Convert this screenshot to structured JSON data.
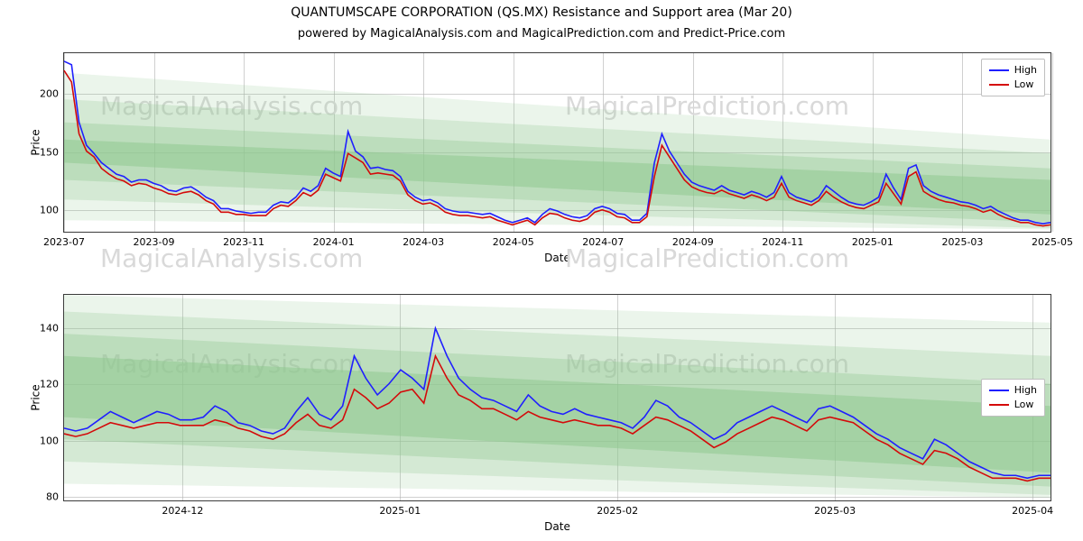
{
  "titles": {
    "main": "QUANTUMSCAPE CORPORATION (QS.MX) Resistance and Support area (Mar 20)",
    "sub": "powered by MagicalAnalysis.com and MagicalPrediction.com and Predict-Price.com"
  },
  "legend": {
    "high": "High",
    "low": "Low"
  },
  "colors": {
    "high": "#1f1fff",
    "low": "#d40a0a",
    "band1": "#8fc990",
    "band2": "#a9d6aa",
    "band3": "#c3e3c3",
    "band4": "#e3f1e3",
    "grid": "#b0b0b0",
    "watermark": "#d9d9d9",
    "axis": "#3b3b3b",
    "text": "#000000"
  },
  "watermarks": {
    "wm1": "MagicalAnalysis.com",
    "wm2": "MagicalPrediction.com"
  },
  "top_chart": {
    "type": "line",
    "xlabel": "Date",
    "ylabel": "Price",
    "ylim": [
      80,
      235
    ],
    "yticks": [
      100,
      150,
      200
    ],
    "xticks": [
      "2023-07",
      "2023-09",
      "2023-11",
      "2024-01",
      "2024-03",
      "2024-05",
      "2024-07",
      "2024-09",
      "2024-11",
      "2025-01",
      "2025-03",
      "2025-05"
    ],
    "xrange": [
      0,
      11
    ],
    "bands": [
      {
        "y0_start": 140,
        "y1_start": 160,
        "y0_end": 95,
        "y1_end": 125,
        "opacity": 0.55
      },
      {
        "y0_start": 125,
        "y1_start": 175,
        "y0_end": 88,
        "y1_end": 135,
        "opacity": 0.35
      },
      {
        "y0_start": 108,
        "y1_start": 195,
        "y0_end": 83,
        "y1_end": 148,
        "opacity": 0.25
      },
      {
        "y0_start": 90,
        "y1_start": 218,
        "y0_end": 82,
        "y1_end": 160,
        "opacity": 0.18
      }
    ],
    "high": [
      228,
      225,
      175,
      155,
      148,
      140,
      135,
      130,
      128,
      123,
      125,
      125,
      122,
      120,
      116,
      115,
      118,
      119,
      115,
      110,
      107,
      100,
      100,
      98,
      97,
      96,
      97,
      97,
      103,
      106,
      105,
      110,
      118,
      115,
      120,
      135,
      131,
      128,
      167,
      150,
      145,
      135,
      136,
      134,
      133,
      128,
      115,
      110,
      107,
      108,
      105,
      100,
      98,
      97,
      97,
      96,
      95,
      96,
      93,
      90,
      88,
      90,
      92,
      88,
      95,
      100,
      98,
      95,
      93,
      92,
      94,
      100,
      102,
      100,
      96,
      95,
      90,
      90,
      96,
      140,
      165,
      150,
      140,
      130,
      123,
      120,
      118,
      116,
      120,
      116,
      114,
      112,
      115,
      113,
      110,
      114,
      128,
      114,
      110,
      108,
      106,
      110,
      120,
      115,
      110,
      106,
      104,
      103,
      106,
      110,
      130,
      118,
      108,
      135,
      138,
      120,
      115,
      112,
      110,
      108,
      106,
      105,
      103,
      100,
      102,
      98,
      95,
      92,
      90,
      90,
      88,
      87,
      88
    ],
    "low": [
      220,
      210,
      165,
      150,
      145,
      135,
      130,
      126,
      124,
      120,
      122,
      121,
      118,
      116,
      113,
      112,
      114,
      115,
      112,
      107,
      104,
      97,
      97,
      95,
      95,
      94,
      94,
      94,
      100,
      103,
      102,
      107,
      114,
      111,
      116,
      130,
      127,
      124,
      148,
      144,
      140,
      130,
      131,
      130,
      129,
      124,
      112,
      107,
      104,
      105,
      102,
      97,
      95,
      94,
      94,
      93,
      92,
      93,
      90,
      88,
      86,
      88,
      90,
      86,
      92,
      96,
      95,
      92,
      90,
      89,
      91,
      97,
      99,
      97,
      93,
      92,
      88,
      88,
      93,
      128,
      155,
      145,
      135,
      125,
      119,
      116,
      114,
      113,
      116,
      113,
      111,
      109,
      112,
      110,
      107,
      110,
      122,
      110,
      107,
      105,
      103,
      107,
      115,
      110,
      106,
      103,
      101,
      100,
      103,
      106,
      122,
      113,
      104,
      128,
      132,
      115,
      111,
      108,
      106,
      105,
      103,
      102,
      100,
      97,
      99,
      95,
      92,
      90,
      88,
      88,
      86,
      85,
      86
    ]
  },
  "bottom_chart": {
    "type": "line",
    "xlabel": "Date",
    "ylabel": "Price",
    "ylim": [
      78,
      152
    ],
    "yticks": [
      80,
      100,
      120,
      140
    ],
    "xticks": [
      "2024-12",
      "2025-01",
      "2025-02",
      "2025-03",
      "2025-04"
    ],
    "xtick_positions": [
      0.12,
      0.34,
      0.56,
      0.78,
      0.98
    ],
    "bands": [
      {
        "y0_start": 108,
        "y1_start": 130,
        "y0_end": 88,
        "y1_end": 112,
        "opacity": 0.55
      },
      {
        "y0_start": 100,
        "y1_start": 138,
        "y0_end": 83,
        "y1_end": 120,
        "opacity": 0.35
      },
      {
        "y0_start": 92,
        "y1_start": 146,
        "y0_end": 80,
        "y1_end": 130,
        "opacity": 0.25
      },
      {
        "y0_start": 84,
        "y1_start": 152,
        "y0_end": 79,
        "y1_end": 142,
        "opacity": 0.18
      }
    ],
    "high": [
      104,
      103,
      104,
      107,
      110,
      108,
      106,
      108,
      110,
      109,
      107,
      107,
      108,
      112,
      110,
      106,
      105,
      103,
      102,
      104,
      110,
      115,
      109,
      107,
      112,
      130,
      122,
      116,
      120,
      125,
      122,
      118,
      140,
      130,
      122,
      118,
      115,
      114,
      112,
      110,
      116,
      112,
      110,
      109,
      111,
      109,
      108,
      107,
      106,
      104,
      108,
      114,
      112,
      108,
      106,
      103,
      100,
      102,
      106,
      108,
      110,
      112,
      110,
      108,
      106,
      111,
      112,
      110,
      108,
      105,
      102,
      100,
      97,
      95,
      93,
      100,
      98,
      95,
      92,
      90,
      88,
      87,
      87,
      86,
      87,
      87
    ],
    "low": [
      102,
      101,
      102,
      104,
      106,
      105,
      104,
      105,
      106,
      106,
      105,
      105,
      105,
      107,
      106,
      104,
      103,
      101,
      100,
      102,
      106,
      109,
      105,
      104,
      107,
      118,
      115,
      111,
      113,
      117,
      118,
      113,
      130,
      122,
      116,
      114,
      111,
      111,
      109,
      107,
      110,
      108,
      107,
      106,
      107,
      106,
      105,
      105,
      104,
      102,
      105,
      108,
      107,
      105,
      103,
      100,
      97,
      99,
      102,
      104,
      106,
      108,
      107,
      105,
      103,
      107,
      108,
      107,
      106,
      103,
      100,
      98,
      95,
      93,
      91,
      96,
      95,
      93,
      90,
      88,
      86,
      86,
      86,
      85,
      86,
      86
    ]
  }
}
